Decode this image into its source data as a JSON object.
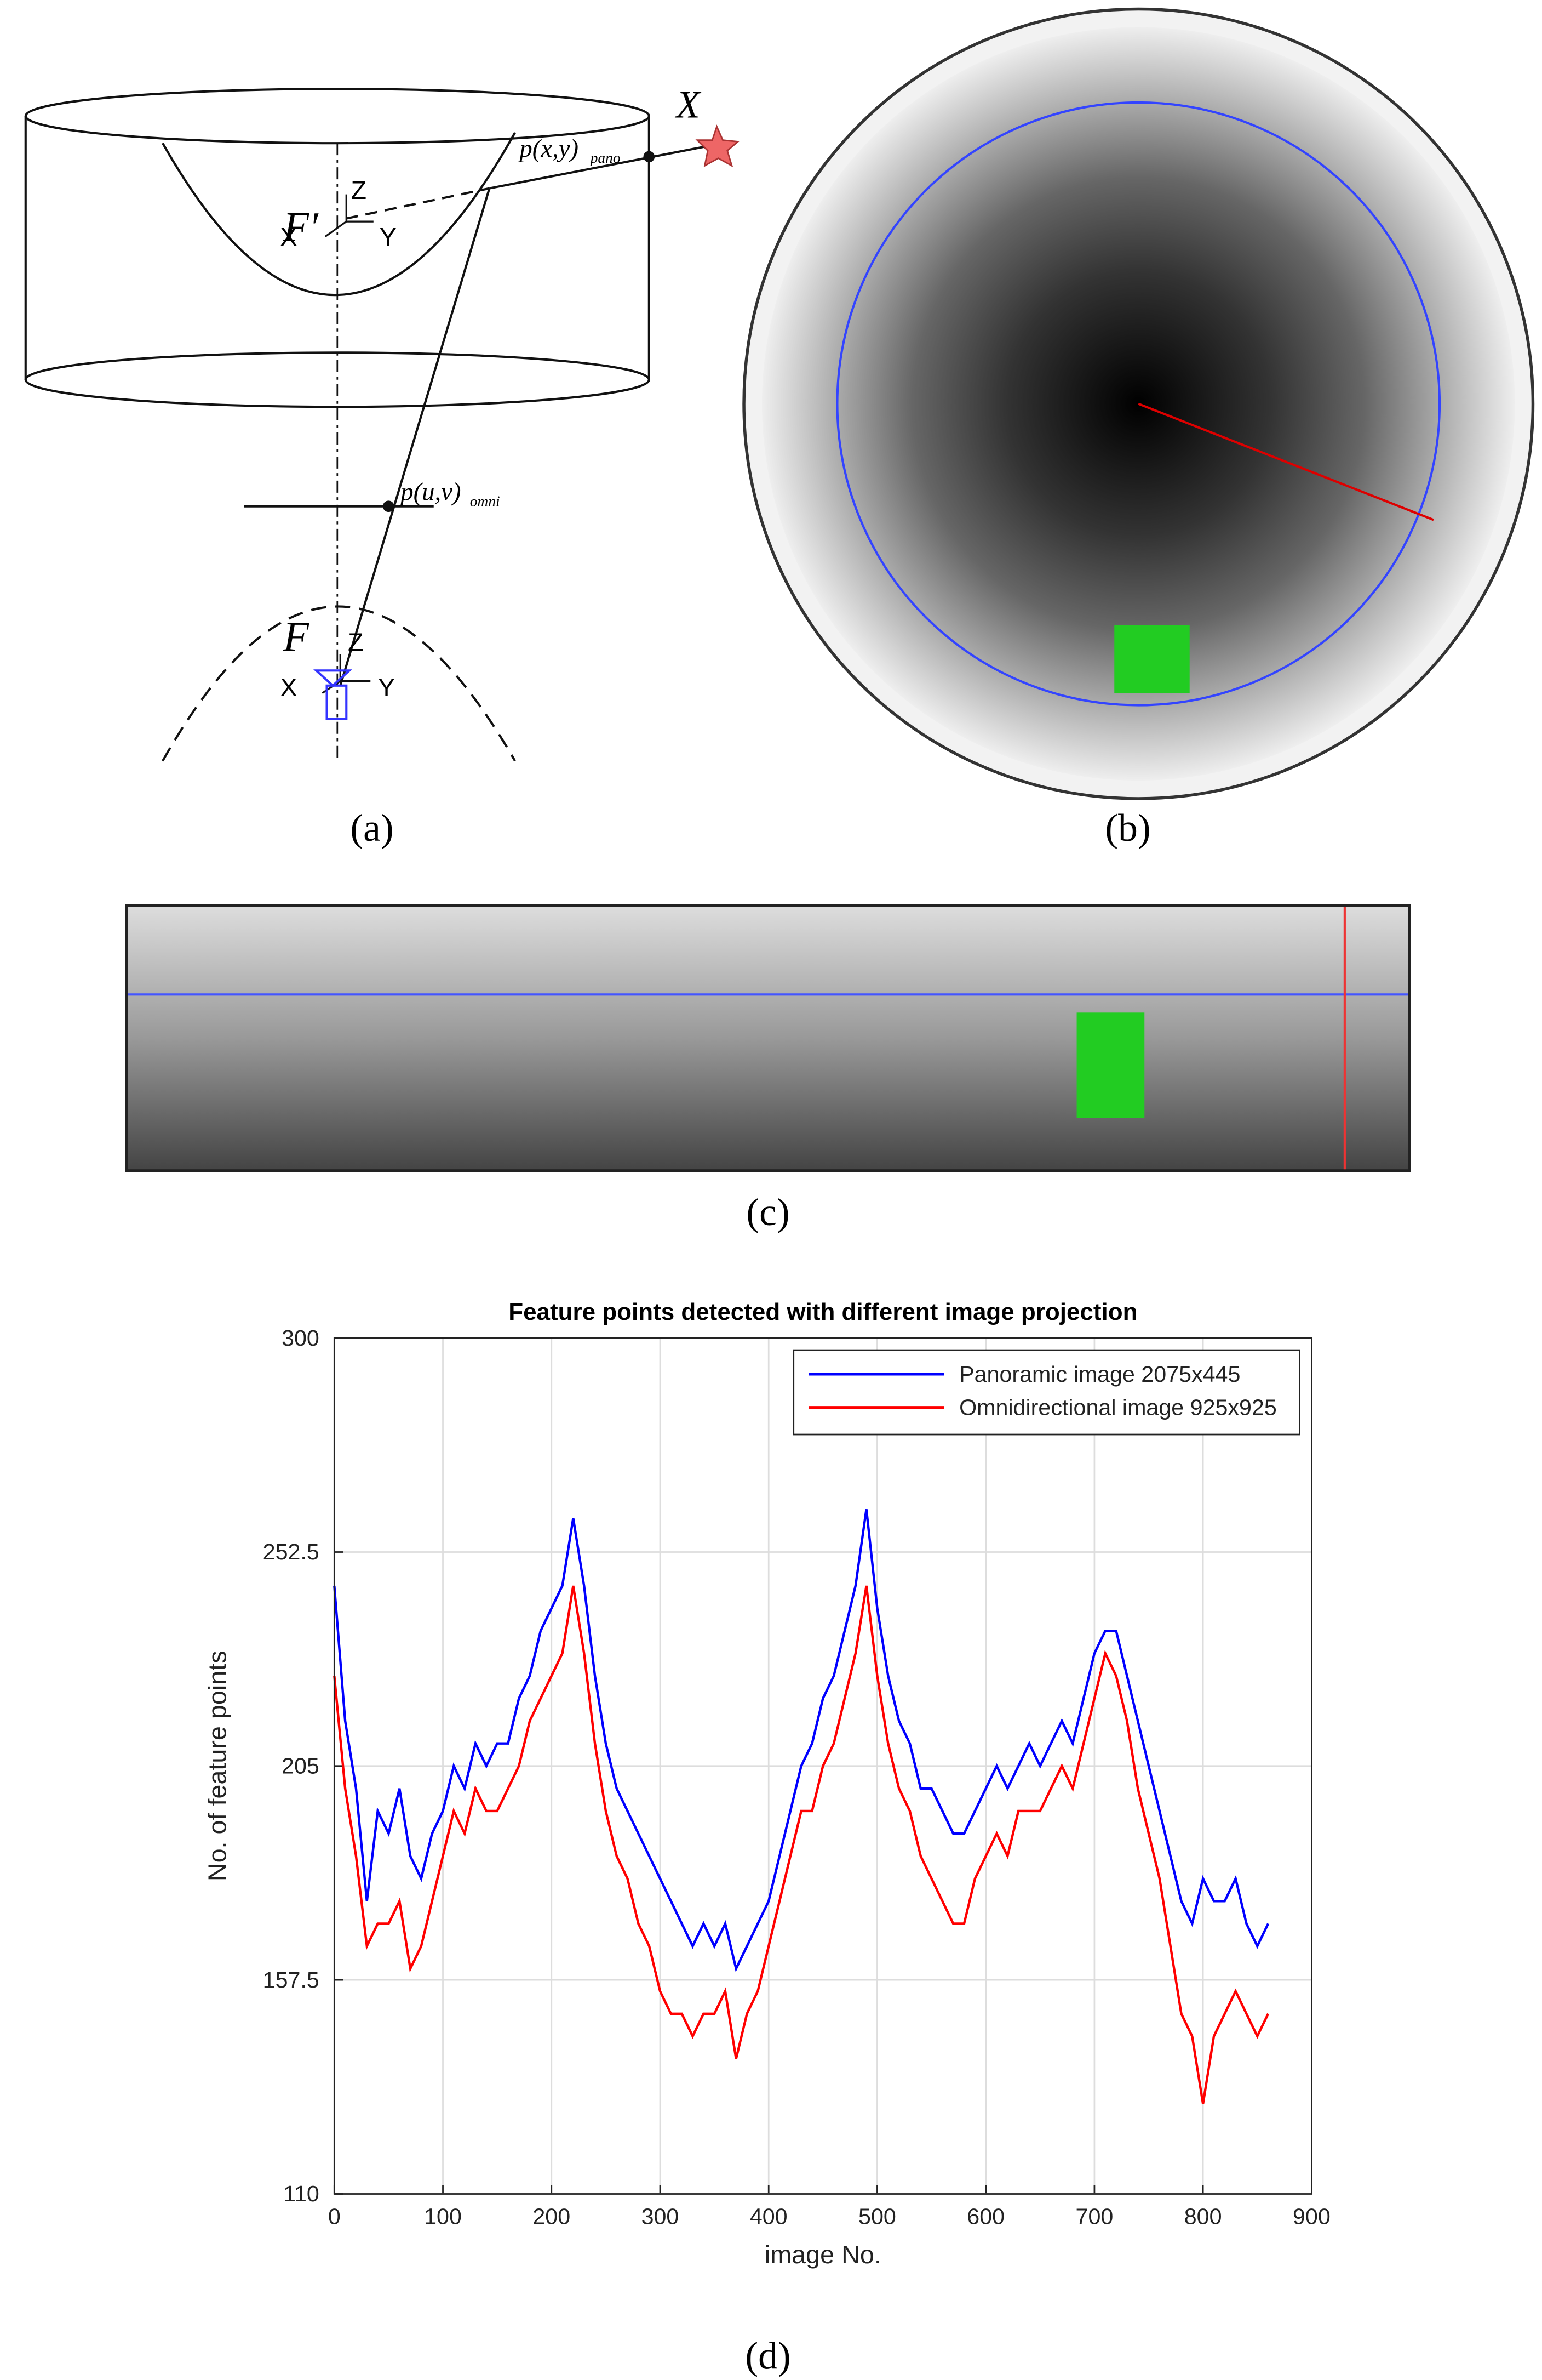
{
  "figure": {
    "diagram": {
      "point_X": "X",
      "pano_point": {
        "label": "p(x,y)",
        "subscript": "pano"
      },
      "omni_point": {
        "label": "p(u,v)",
        "subscript": "omni"
      },
      "upper_focus": "F′",
      "lower_focus": "F",
      "axis_z": "Z",
      "axis_x": "X",
      "axis_y": "Y"
    },
    "captions": [
      "(a)",
      "(b)",
      "(c)",
      "(d)"
    ]
  },
  "chart_data": {
    "type": "line",
    "title": "Feature points detected with different image projection",
    "x_label": "image No.",
    "y_label": "No. of feature points",
    "x": [
      0,
      10,
      20,
      30,
      40,
      50,
      60,
      70,
      80,
      90,
      100,
      110,
      120,
      130,
      140,
      150,
      160,
      170,
      180,
      190,
      200,
      210,
      220,
      230,
      240,
      250,
      260,
      270,
      280,
      290,
      300,
      310,
      320,
      330,
      340,
      350,
      360,
      370,
      380,
      390,
      400,
      410,
      420,
      430,
      440,
      450,
      460,
      470,
      480,
      490,
      500,
      510,
      520,
      530,
      540,
      550,
      560,
      570,
      580,
      590,
      600,
      610,
      620,
      630,
      640,
      650,
      660,
      670,
      680,
      690,
      700,
      710,
      720,
      730,
      740,
      750,
      760,
      770,
      780,
      790,
      800,
      810,
      820,
      830,
      840,
      850,
      860
    ],
    "series": [
      {
        "name": "Panoramic image 2075x445",
        "color": "#0000ff",
        "values": [
          245,
          215,
          200,
          175,
          195,
          190,
          200,
          185,
          180,
          190,
          195,
          205,
          200,
          210,
          205,
          210,
          210,
          220,
          225,
          235,
          240,
          245,
          260,
          245,
          225,
          210,
          200,
          195,
          190,
          185,
          180,
          175,
          170,
          165,
          170,
          165,
          170,
          160,
          165,
          170,
          175,
          185,
          195,
          205,
          210,
          220,
          225,
          235,
          245,
          262,
          240,
          225,
          215,
          210,
          200,
          200,
          195,
          190,
          190,
          195,
          200,
          205,
          200,
          205,
          210,
          205,
          210,
          215,
          210,
          220,
          230,
          235,
          235,
          225,
          215,
          205,
          195,
          185,
          175,
          170,
          180,
          175,
          175,
          180,
          170,
          165,
          170
        ]
      },
      {
        "name": "Omnidirectional image 925x925",
        "color": "#ff0000",
        "values": [
          225,
          200,
          185,
          165,
          170,
          170,
          175,
          160,
          165,
          175,
          185,
          195,
          190,
          200,
          195,
          195,
          200,
          205,
          215,
          220,
          225,
          230,
          245,
          230,
          210,
          195,
          185,
          180,
          170,
          165,
          155,
          150,
          150,
          145,
          150,
          150,
          155,
          140,
          150,
          155,
          165,
          175,
          185,
          195,
          195,
          205,
          210,
          220,
          230,
          245,
          225,
          210,
          200,
          195,
          185,
          180,
          175,
          170,
          170,
          180,
          185,
          190,
          185,
          195,
          195,
          195,
          200,
          205,
          200,
          210,
          220,
          230,
          225,
          215,
          200,
          190,
          180,
          165,
          150,
          145,
          130,
          145,
          150,
          155,
          150,
          145,
          150
        ]
      }
    ],
    "xlim": [
      0,
      900
    ],
    "xticks": [
      0,
      100,
      200,
      300,
      400,
      500,
      600,
      700,
      800,
      900
    ],
    "ylim": [
      110,
      300
    ],
    "yticks": [
      110,
      157.5,
      205,
      252.5,
      300
    ],
    "grid": true,
    "legend": "upper right"
  }
}
